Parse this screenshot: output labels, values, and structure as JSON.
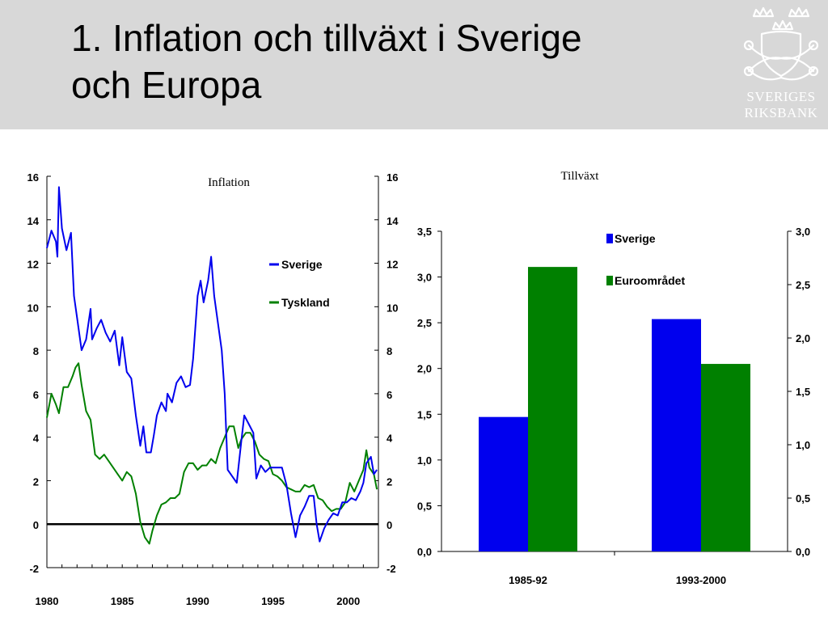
{
  "slide": {
    "title_line1": "1. Inflation och tillväxt i Sverige",
    "title_line2": "och Europa",
    "logo_line1": "SVERIGES",
    "logo_line2": "RIKSBANK"
  },
  "colors": {
    "sverige": "#0000ee",
    "tyskland": "#008000",
    "header_bg": "#d8d8d8"
  },
  "chart_data": [
    {
      "type": "line",
      "title": "Inflation",
      "xlabel": "",
      "ylabel": "",
      "xlim": [
        1980,
        2002
      ],
      "ylim": [
        -2,
        16
      ],
      "x_ticks": [
        1980,
        1985,
        1990,
        1995,
        2000
      ],
      "y_ticks": [
        -2,
        0,
        2,
        4,
        6,
        8,
        10,
        12,
        14,
        16
      ],
      "y_tick_labels": [
        "-2",
        "0",
        "2",
        "4",
        "6",
        "8",
        "10",
        "12",
        "14",
        "16"
      ],
      "legend_position": "upper right",
      "series": [
        {
          "name": "Sverige",
          "color": "#0000ee",
          "points": [
            [
              1980.0,
              12.7
            ],
            [
              1980.3,
              13.5
            ],
            [
              1980.6,
              13.0
            ],
            [
              1980.7,
              12.3
            ],
            [
              1980.8,
              15.5
            ],
            [
              1981.0,
              13.6
            ],
            [
              1981.3,
              12.6
            ],
            [
              1981.6,
              13.4
            ],
            [
              1981.8,
              10.5
            ],
            [
              1982.0,
              9.5
            ],
            [
              1982.3,
              8.0
            ],
            [
              1982.6,
              8.5
            ],
            [
              1982.9,
              9.9
            ],
            [
              1983.0,
              8.5
            ],
            [
              1983.3,
              9.0
            ],
            [
              1983.6,
              9.4
            ],
            [
              1983.9,
              8.8
            ],
            [
              1984.2,
              8.4
            ],
            [
              1984.5,
              8.9
            ],
            [
              1984.8,
              7.3
            ],
            [
              1985.0,
              8.6
            ],
            [
              1985.3,
              7.0
            ],
            [
              1985.6,
              6.7
            ],
            [
              1985.9,
              5.0
            ],
            [
              1986.2,
              3.6
            ],
            [
              1986.4,
              4.5
            ],
            [
              1986.6,
              3.3
            ],
            [
              1986.9,
              3.3
            ],
            [
              1987.1,
              4.1
            ],
            [
              1987.3,
              5.0
            ],
            [
              1987.6,
              5.6
            ],
            [
              1987.9,
              5.2
            ],
            [
              1988.0,
              6.0
            ],
            [
              1988.3,
              5.6
            ],
            [
              1988.6,
              6.5
            ],
            [
              1988.9,
              6.8
            ],
            [
              1989.2,
              6.3
            ],
            [
              1989.5,
              6.4
            ],
            [
              1989.7,
              7.6
            ],
            [
              1990.0,
              10.5
            ],
            [
              1990.2,
              11.2
            ],
            [
              1990.4,
              10.2
            ],
            [
              1990.7,
              11.2
            ],
            [
              1990.9,
              12.3
            ],
            [
              1991.1,
              10.5
            ],
            [
              1991.3,
              9.5
            ],
            [
              1991.6,
              8.0
            ],
            [
              1991.8,
              6.0
            ],
            [
              1992.0,
              2.5
            ],
            [
              1992.3,
              2.2
            ],
            [
              1992.6,
              1.9
            ],
            [
              1992.9,
              3.8
            ],
            [
              1993.1,
              5.0
            ],
            [
              1993.4,
              4.6
            ],
            [
              1993.7,
              4.2
            ],
            [
              1993.9,
              2.1
            ],
            [
              1994.2,
              2.7
            ],
            [
              1994.5,
              2.4
            ],
            [
              1994.8,
              2.6
            ],
            [
              1995.0,
              2.6
            ],
            [
              1995.3,
              2.6
            ],
            [
              1995.6,
              2.6
            ],
            [
              1995.9,
              1.8
            ],
            [
              1996.2,
              0.5
            ],
            [
              1996.5,
              -0.6
            ],
            [
              1996.8,
              0.4
            ],
            [
              1997.1,
              0.8
            ],
            [
              1997.4,
              1.3
            ],
            [
              1997.7,
              1.3
            ],
            [
              1997.9,
              0.0
            ],
            [
              1998.1,
              -0.8
            ],
            [
              1998.4,
              -0.2
            ],
            [
              1998.7,
              0.2
            ],
            [
              1999.0,
              0.5
            ],
            [
              1999.3,
              0.4
            ],
            [
              1999.6,
              1.0
            ],
            [
              1999.9,
              1.0
            ],
            [
              2000.2,
              1.2
            ],
            [
              2000.5,
              1.1
            ],
            [
              2000.8,
              1.5
            ],
            [
              2001.0,
              1.9
            ],
            [
              2001.2,
              2.8
            ],
            [
              2001.5,
              3.1
            ],
            [
              2001.7,
              2.3
            ],
            [
              2001.9,
              2.5
            ]
          ]
        },
        {
          "name": "Tyskland",
          "color": "#008000",
          "points": [
            [
              1980.0,
              4.9
            ],
            [
              1980.3,
              6.0
            ],
            [
              1980.6,
              5.5
            ],
            [
              1980.8,
              5.1
            ],
            [
              1981.1,
              6.3
            ],
            [
              1981.4,
              6.3
            ],
            [
              1981.7,
              6.8
            ],
            [
              1981.9,
              7.2
            ],
            [
              1982.1,
              7.4
            ],
            [
              1982.3,
              6.4
            ],
            [
              1982.6,
              5.2
            ],
            [
              1982.9,
              4.8
            ],
            [
              1983.2,
              3.2
            ],
            [
              1983.5,
              3.0
            ],
            [
              1983.8,
              3.2
            ],
            [
              1984.1,
              2.9
            ],
            [
              1984.4,
              2.6
            ],
            [
              1984.7,
              2.3
            ],
            [
              1985.0,
              2.0
            ],
            [
              1985.3,
              2.4
            ],
            [
              1985.6,
              2.2
            ],
            [
              1985.9,
              1.4
            ],
            [
              1986.2,
              0.1
            ],
            [
              1986.5,
              -0.6
            ],
            [
              1986.8,
              -0.9
            ],
            [
              1987.0,
              -0.3
            ],
            [
              1987.3,
              0.4
            ],
            [
              1987.6,
              0.9
            ],
            [
              1987.9,
              1.0
            ],
            [
              1988.2,
              1.2
            ],
            [
              1988.5,
              1.2
            ],
            [
              1988.8,
              1.4
            ],
            [
              1989.1,
              2.4
            ],
            [
              1989.4,
              2.8
            ],
            [
              1989.7,
              2.8
            ],
            [
              1990.0,
              2.5
            ],
            [
              1990.3,
              2.7
            ],
            [
              1990.6,
              2.7
            ],
            [
              1990.9,
              3.0
            ],
            [
              1991.2,
              2.8
            ],
            [
              1991.5,
              3.5
            ],
            [
              1991.8,
              4.0
            ],
            [
              1992.1,
              4.5
            ],
            [
              1992.4,
              4.5
            ],
            [
              1992.7,
              3.5
            ],
            [
              1992.9,
              3.9
            ],
            [
              1993.2,
              4.2
            ],
            [
              1993.5,
              4.2
            ],
            [
              1993.8,
              3.8
            ],
            [
              1994.1,
              3.2
            ],
            [
              1994.4,
              3.0
            ],
            [
              1994.7,
              2.9
            ],
            [
              1995.0,
              2.3
            ],
            [
              1995.3,
              2.2
            ],
            [
              1995.6,
              2.0
            ],
            [
              1995.9,
              1.7
            ],
            [
              1996.2,
              1.6
            ],
            [
              1996.5,
              1.5
            ],
            [
              1996.8,
              1.5
            ],
            [
              1997.1,
              1.8
            ],
            [
              1997.4,
              1.7
            ],
            [
              1997.7,
              1.8
            ],
            [
              1998.0,
              1.2
            ],
            [
              1998.3,
              1.1
            ],
            [
              1998.6,
              0.8
            ],
            [
              1998.9,
              0.6
            ],
            [
              1999.2,
              0.7
            ],
            [
              1999.5,
              0.7
            ],
            [
              1999.8,
              1.0
            ],
            [
              2000.1,
              1.9
            ],
            [
              2000.4,
              1.5
            ],
            [
              2000.7,
              2.0
            ],
            [
              2001.0,
              2.5
            ],
            [
              2001.2,
              3.4
            ],
            [
              2001.4,
              2.6
            ],
            [
              2001.7,
              2.3
            ],
            [
              2001.9,
              1.6
            ]
          ]
        }
      ]
    },
    {
      "type": "bar",
      "title": "Tillväxt",
      "xlabel": "",
      "ylabel": "",
      "categories": [
        "1985-92",
        "1993-2000"
      ],
      "ylim": [
        0,
        3.5
      ],
      "y_ticks": [
        0,
        0.5,
        1.0,
        1.5,
        2.0,
        2.5,
        3.0,
        3.5
      ],
      "y_tick_labels": [
        "0,0",
        "0,5",
        "1,0",
        "1,5",
        "2,0",
        "2,5",
        "3,0",
        "3,5"
      ],
      "y2_ticks": [
        0,
        0.5,
        1.0,
        1.5,
        2.0,
        2.5,
        3.0
      ],
      "y2_tick_labels": [
        "0,0",
        "0,5",
        "1,0",
        "1,5",
        "2,0",
        "2,5",
        "3,0"
      ],
      "ylim2": [
        0,
        3.0
      ],
      "legend_position": "top-center",
      "series": [
        {
          "name": "Sverige",
          "color": "#0000ee",
          "values": [
            1.47,
            2.54
          ]
        },
        {
          "name": "Euroområdet",
          "color": "#008000",
          "values": [
            3.11,
            2.05
          ]
        }
      ]
    }
  ]
}
